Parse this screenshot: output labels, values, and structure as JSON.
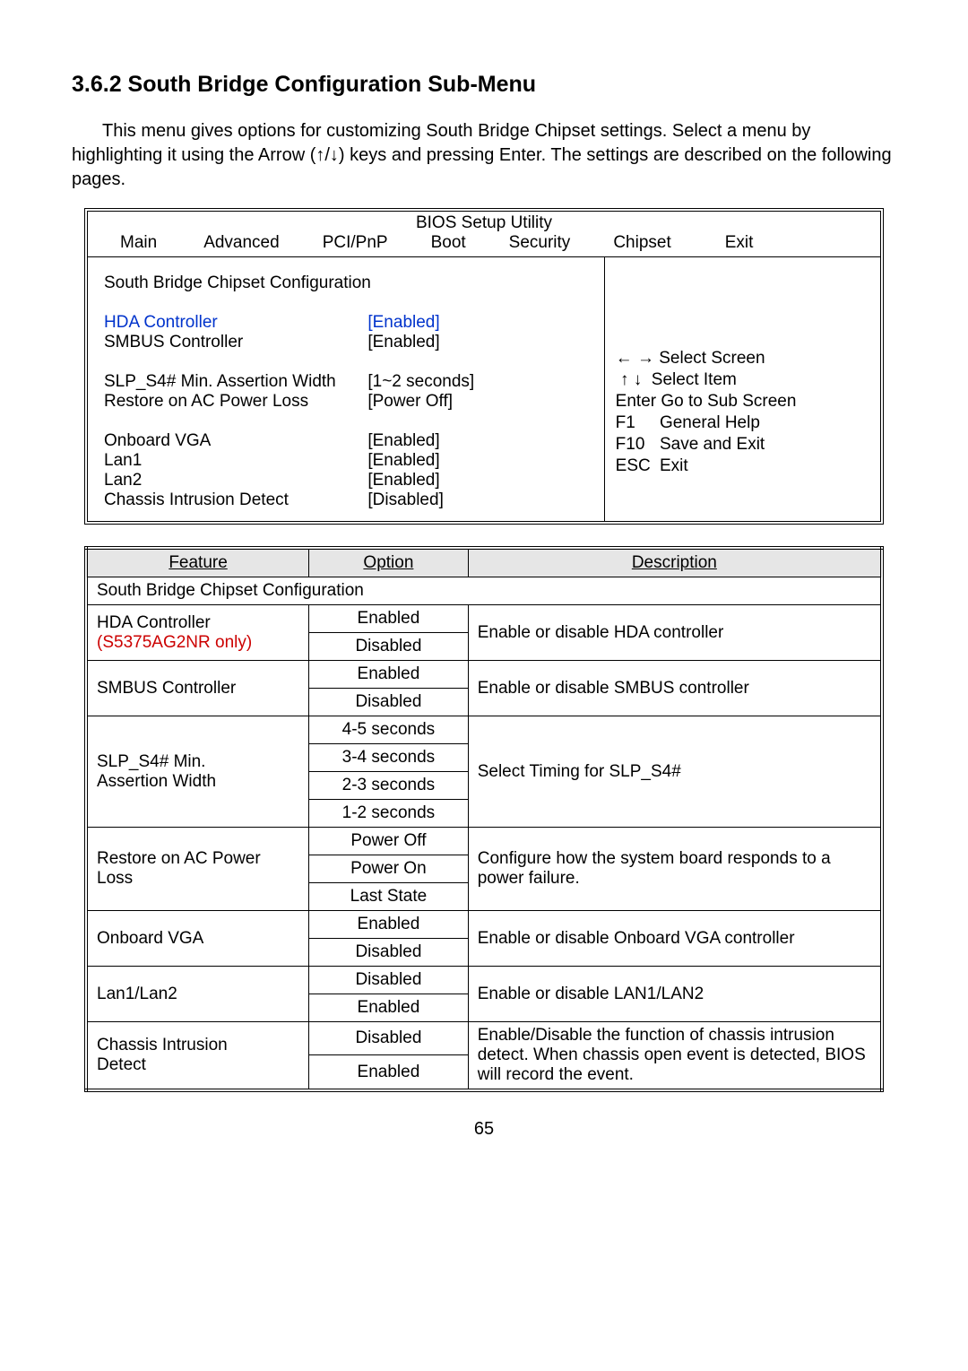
{
  "heading": "3.6.2 South Bridge Configuration Sub-Menu",
  "intro_text": "This menu gives options for customizing South Bridge Chipset settings. Select a menu by highlighting it using the Arrow (↑/↓) keys and pressing Enter.  The settings are described on the following pages.",
  "bios": {
    "title": "BIOS Setup Utility",
    "tabs": [
      "Main",
      "Advanced",
      "PCI/PnP",
      "Boot",
      "Security",
      "Chipset",
      "Exit"
    ],
    "section_title": "South Bridge Chipset Configuration",
    "rows": [
      {
        "label": "HDA Controller",
        "value": "[Enabled]",
        "blue": true
      },
      {
        "label": "SMBUS Controller",
        "value": "[Enabled]",
        "blue": false
      }
    ],
    "rows2": [
      {
        "label": "SLP_S4# Min. Assertion Width",
        "value": "[1~2 seconds]"
      },
      {
        "label": "Restore on AC Power Loss",
        "value": "[Power Off]"
      }
    ],
    "rows3": [
      {
        "label": "Onboard VGA",
        "value": "[Enabled]"
      },
      {
        "label": "Lan1",
        "value": "[Enabled]"
      },
      {
        "label": "Lan2",
        "value": "[Enabled]"
      },
      {
        "label": "Chassis Intrusion Detect",
        "value": "[Disabled]"
      }
    ],
    "help": {
      "l1_pre": "← →",
      "l1": "Select Screen",
      "l2_pre": "↑  ↓",
      "l2": "Select Item",
      "l3": "Enter Go to Sub Screen",
      "l4k": "F1",
      "l4": "General Help",
      "l5k": "F10",
      "l5": "Save and Exit",
      "l6k": "ESC",
      "l6": "Exit"
    }
  },
  "table": {
    "headers": {
      "feature": "Feature",
      "option": "Option",
      "description": "Description"
    },
    "section": "South Bridge Chipset Configuration",
    "rows": [
      {
        "feature_lines": [
          "HDA Controller",
          "(S5375AG2NR only)"
        ],
        "feature_red_idx": 1,
        "options": [
          "Enabled",
          "Disabled"
        ],
        "description": "Enable or\ndisable HDA controller"
      },
      {
        "feature_lines": [
          "SMBUS Controller"
        ],
        "options": [
          "Enabled",
          "Disabled"
        ],
        "description": "Enable or disable SMBUS controller"
      },
      {
        "feature_lines": [
          "SLP_S4# Min.",
          "Assertion Width"
        ],
        "options": [
          "4-5 seconds",
          "3-4 seconds",
          "2-3 seconds",
          "1-2 seconds"
        ],
        "description": "Select Timing for SLP_S4#"
      },
      {
        "feature_lines": [
          "Restore on AC Power",
          "Loss"
        ],
        "options": [
          "Power Off",
          "Power On",
          "Last State"
        ],
        "description": "Configure how the system board responds to a power failure."
      },
      {
        "feature_lines": [
          "Onboard VGA"
        ],
        "options": [
          "Enabled",
          "Disabled"
        ],
        "description": "Enable or disable Onboard VGA controller"
      },
      {
        "feature_lines": [
          "Lan1/Lan2"
        ],
        "options": [
          "Disabled",
          "Enabled"
        ],
        "description": "Enable or disable LAN1/LAN2"
      },
      {
        "feature_lines": [
          "Chassis Intrusion",
          "Detect"
        ],
        "options": [
          "Disabled",
          "Enabled"
        ],
        "description": "Enable/Disable the function of chassis intrusion detect. When chassis open event is detected, BIOS will record the event."
      }
    ]
  },
  "page_number": "65"
}
